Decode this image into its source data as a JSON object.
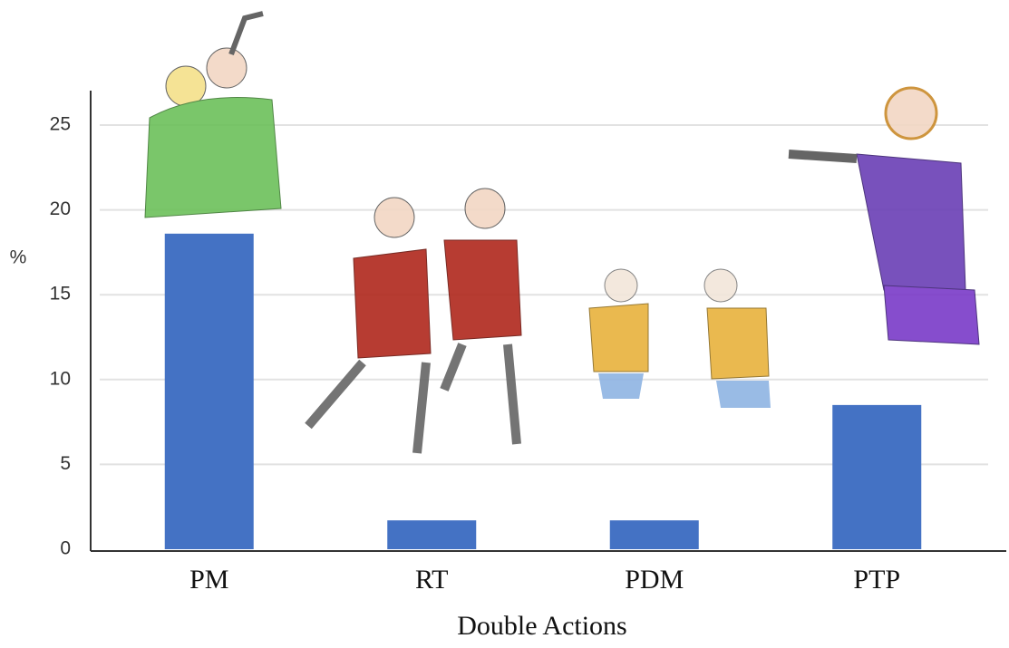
{
  "chart_data": {
    "type": "bar",
    "x_label": "Double Actions",
    "y_label": "%",
    "categories": [
      "PM",
      "RT",
      "PDM",
      "PTP"
    ],
    "values": [
      18.6,
      1.7,
      1.7,
      8.5
    ],
    "color": "#4472c4",
    "ylim": [
      0,
      25
    ],
    "yticks": [
      0,
      5,
      10,
      15,
      20,
      25
    ],
    "grid": true
  }
}
